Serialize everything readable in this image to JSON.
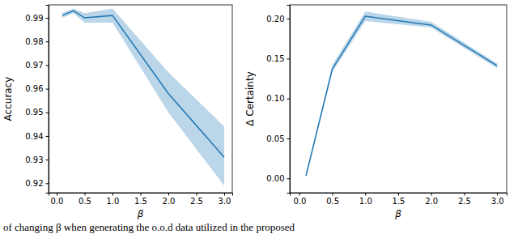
{
  "chart_data": [
    {
      "type": "line",
      "xlabel": "β",
      "ylabel": "Accuracy",
      "x": [
        0.1,
        0.3,
        0.5,
        1.0,
        2.0,
        3.0
      ],
      "series": [
        {
          "color": "#1f77b4",
          "values": [
            0.991,
            0.993,
            0.99,
            0.991,
            0.958,
            0.931
          ],
          "lower": [
            0.99,
            0.992,
            0.988,
            0.988,
            0.95,
            0.919
          ],
          "upper": [
            0.992,
            0.994,
            0.992,
            0.994,
            0.967,
            0.944
          ]
        }
      ],
      "xlim": [
        -0.145,
        3.145
      ],
      "xticks": [
        {
          "value": 0,
          "label": "0.0"
        },
        0.5,
        {
          "value": 1,
          "label": "1.0"
        },
        1.5,
        {
          "value": 2,
          "label": "2.0"
        },
        2.5,
        {
          "value": 3,
          "label": "3.0"
        }
      ],
      "ylim": [
        0.916,
        0.9955
      ],
      "yticks": [
        0.92,
        0.93,
        0.94,
        0.95,
        0.96,
        0.97,
        0.98,
        0.99
      ],
      "grid": false
    },
    {
      "type": "line",
      "xlabel": "β",
      "ylabel": "Δ Certainty",
      "x": [
        0.1,
        0.5,
        1.0,
        2.0,
        3.0
      ],
      "series": [
        {
          "color": "#1f77b4",
          "values": [
            0.003,
            0.137,
            0.203,
            0.192,
            0.141
          ],
          "lower": [
            0.002,
            0.133,
            0.197,
            0.189,
            0.138
          ],
          "upper": [
            0.005,
            0.142,
            0.209,
            0.196,
            0.144
          ]
        }
      ],
      "xlim": [
        -0.146,
        3.146
      ],
      "xticks": [
        {
          "value": 0,
          "label": "0.0"
        },
        0.5,
        {
          "value": 1,
          "label": "1.0"
        },
        1.5,
        {
          "value": 2,
          "label": "2.0"
        },
        2.5,
        {
          "value": 3,
          "label": "3.0"
        }
      ],
      "ylim": [
        -0.018,
        0.2173
      ],
      "yticks": [
        {
          "value": 0,
          "label": "0.00"
        },
        0.05,
        {
          "value": 0.1,
          "label": "0.10"
        },
        0.15,
        {
          "value": 0.2,
          "label": "0.20"
        }
      ],
      "grid": false
    }
  ],
  "caption": "of changing β when generating the o.o.d data utilized in the proposed"
}
